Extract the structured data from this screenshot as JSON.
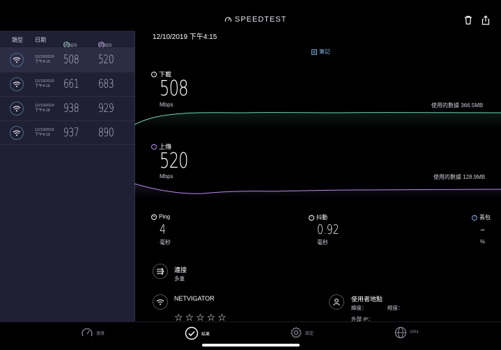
{
  "app": {
    "brand": "SPEEDTEST"
  },
  "sidebar": {
    "headers": {
      "type": "類型",
      "date": "日期",
      "download_unit": "Mbps",
      "upload_unit": "Mbps"
    },
    "rows": [
      {
        "date": "12/10/2019",
        "time": "下午4:15",
        "download": "508",
        "upload": "520"
      },
      {
        "date": "12/10/2019",
        "time": "下午4:16",
        "download": "661",
        "upload": "683"
      },
      {
        "date": "12/10/2019",
        "time": "下午4:18",
        "download": "938",
        "upload": "929"
      },
      {
        "date": "12/10/2019",
        "time": "下午4:19",
        "download": "937",
        "upload": "890"
      }
    ]
  },
  "main": {
    "datetime": "12/10/2019 下午4:15",
    "notes_label": "筆記",
    "download": {
      "label": "下載",
      "value": "508",
      "unit": "Mbps",
      "data_used": "使用的數據 366.5MB"
    },
    "upload": {
      "label": "上傳",
      "value": "520",
      "unit": "Mbps",
      "data_used": "使用的數據 128.9MB"
    },
    "ping": {
      "label": "Ping",
      "value": "4",
      "unit": "毫秒"
    },
    "jitter": {
      "label": "抖動",
      "value": "0.92",
      "unit": "毫秒"
    },
    "packet_loss": {
      "label": "丟包",
      "value": "–",
      "unit": "%"
    },
    "connections": {
      "title": "連接",
      "value": "多重"
    },
    "isp": {
      "name": "NETVIGATOR",
      "stars": "☆☆☆☆☆"
    },
    "user_location": {
      "title": "使用者地點",
      "lat_label": "緯度：",
      "lon_label": "經度：",
      "ip_label": "外部 IP："
    }
  },
  "tabs": [
    {
      "label": "速度"
    },
    {
      "label": "結果"
    },
    {
      "label": "設定"
    },
    {
      "label": "VPN"
    }
  ],
  "colors": {
    "download": "#72d6b3",
    "upload": "#b88af0",
    "accent": "#7ba7d8",
    "sidebar_bg": "#1f2033"
  }
}
